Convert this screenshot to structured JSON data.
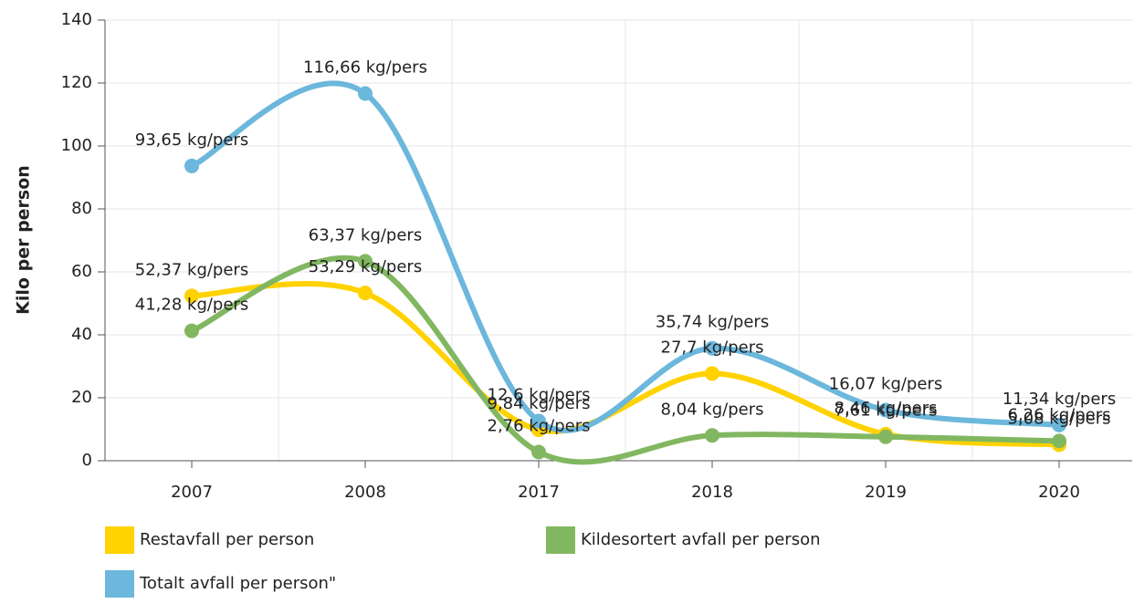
{
  "chart_data": {
    "type": "line",
    "y_label": "Kilo per person",
    "categories": [
      "2007",
      "2008",
      "2017",
      "2018",
      "2019",
      "2020"
    ],
    "series": [
      {
        "name": "Restavfall per person",
        "color": "#ffd200",
        "values": [
          52.37,
          53.29,
          9.84,
          27.7,
          8.46,
          5.08
        ],
        "value_labels": [
          "52,37 kg/pers",
          "53,29 kg/pers",
          "9,84 kg/pers",
          "27,7 kg/pers",
          "8,46 kg/pers",
          "5,08 kg/pers"
        ]
      },
      {
        "name": "Kildesortert avfall per person",
        "color": "#82b761",
        "values": [
          41.28,
          63.37,
          2.76,
          8.04,
          7.61,
          6.26
        ],
        "value_labels": [
          "41,28 kg/pers",
          "63,37 kg/pers",
          "2,76 kg/pers",
          "8,04 kg/pers",
          "7,61 kg/pers",
          "6,26 kg/pers"
        ]
      },
      {
        "name": "Totalt avfall per person\"",
        "color": "#6cb7dc",
        "values": [
          93.65,
          116.66,
          12.6,
          35.74,
          16.07,
          11.34
        ],
        "value_labels": [
          "93,65 kg/pers",
          "116,66 kg/pers",
          "12,6 kg/pers",
          "35,74 kg/pers",
          "16,07 kg/pers",
          "11,34 kg/pers"
        ]
      }
    ],
    "ylim": [
      0,
      140
    ],
    "yticks": [
      0,
      20,
      40,
      60,
      80,
      100,
      120,
      140
    ],
    "grid": true,
    "legend": "bottom"
  }
}
